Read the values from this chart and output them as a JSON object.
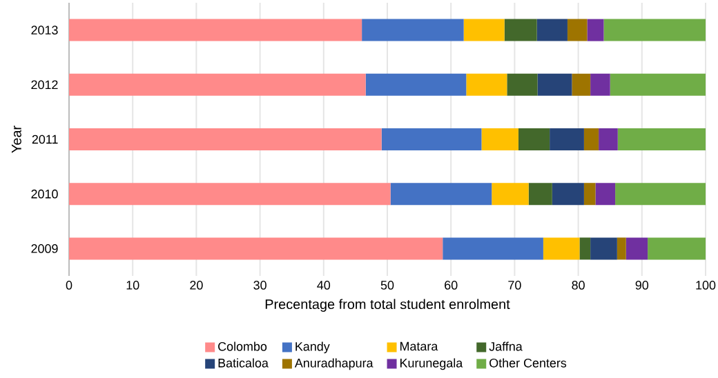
{
  "chart_data": {
    "type": "bar",
    "orientation": "horizontal",
    "stacked": true,
    "xlabel": "Precentage from total student enrolment",
    "ylabel": "Year",
    "categories": [
      "2013",
      "2012",
      "2011",
      "2010",
      "2009"
    ],
    "xlim": [
      0,
      100
    ],
    "xticks": [
      0,
      10,
      20,
      30,
      40,
      50,
      60,
      70,
      80,
      90,
      100
    ],
    "grid": "x",
    "legend": "bottom",
    "series": [
      {
        "name": "Colombo",
        "color": "#ff8a8a",
        "values": [
          46.0,
          46.6,
          49.1,
          50.5,
          58.7
        ]
      },
      {
        "name": "Kandy",
        "color": "#4472c4",
        "values": [
          16.0,
          15.8,
          15.7,
          15.9,
          15.8
        ]
      },
      {
        "name": "Matara",
        "color": "#ffc000",
        "values": [
          6.4,
          6.4,
          5.8,
          5.8,
          5.7
        ]
      },
      {
        "name": "Jaffna",
        "color": "#43682b",
        "values": [
          5.1,
          4.8,
          4.9,
          3.7,
          1.7
        ]
      },
      {
        "name": "Baticaloa",
        "color": "#264478",
        "values": [
          4.8,
          5.4,
          5.4,
          5.0,
          4.2
        ]
      },
      {
        "name": "Anuradhapura",
        "color": "#9e7400",
        "values": [
          3.1,
          2.9,
          2.3,
          1.8,
          1.4
        ]
      },
      {
        "name": "Kurunegala",
        "color": "#7030a0",
        "values": [
          2.6,
          3.1,
          3.0,
          3.1,
          3.4
        ]
      },
      {
        "name": "Other Centers",
        "color": "#70ad47",
        "values": [
          16.0,
          15.0,
          13.8,
          14.2,
          9.1
        ]
      }
    ]
  }
}
